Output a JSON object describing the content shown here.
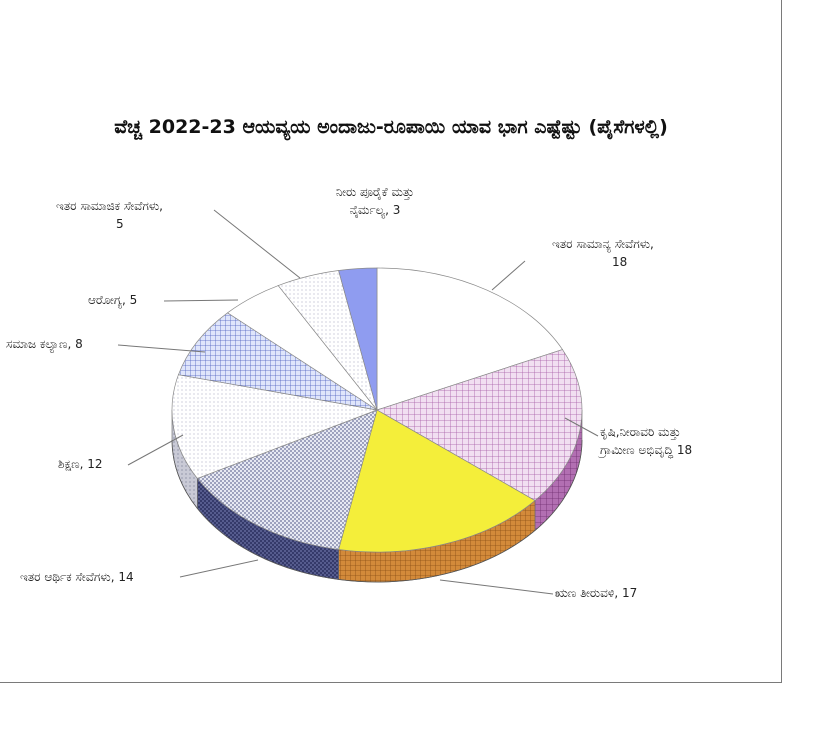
{
  "chart_data": {
    "type": "pie",
    "title": "ವೆಚ್ಚ 2022-23 ಆಯವ್ಯಯ ಅಂದಾಜು-ರೂಪಾಯಿ ಯಾವ ಭಾಗ ಎಷ್ಟೆಷ್ಟು (ಪೈಸೆಗಳಲ್ಲಿ)",
    "slices": [
      {
        "label_lines": [
          "ಇತರ ಸಾಮಾನ್ಯ ಸೇವೆಗಳು,",
          "18"
        ],
        "value": 18,
        "color": "#ffffff"
      },
      {
        "label_lines": [
          "ಕೃಷಿ,ನೀರಾವರಿ ಮತ್ತು",
          "ಗ್ರಾಮೀಣ ಅಭಿವೃದ್ಧಿ 18"
        ],
        "value": 18,
        "color": "#e6c3e6"
      },
      {
        "label_lines": [
          "ಋಣ ತೀರುವಳಿ, 17"
        ],
        "value": 17,
        "color": "#f4ee3a"
      },
      {
        "label_lines": [
          "ಇತರ ಆರ್ಥಿಕ ಸೇವೆಗಳು, 14"
        ],
        "value": 14,
        "color": "#c9cde3"
      },
      {
        "label_lines": [
          "ಶಿಕ್ಷಣ, 12"
        ],
        "value": 12,
        "color": "#ffffff"
      },
      {
        "label_lines": [
          "ಸಮಾಜ ಕಲ್ಯಾಣ, 8"
        ],
        "value": 8,
        "color": "#b9c4ea"
      },
      {
        "label_lines": [
          "ಆರೋಗ್ಯ, 5"
        ],
        "value": 5,
        "color": "#ffffff"
      },
      {
        "label_lines": [
          "ಇತರ ಸಾಮಾಜಿಕ ಸೇವೆಗಳು,",
          "5"
        ],
        "value": 5,
        "color": "#e2e6f4"
      },
      {
        "label_lines": [
          "ನೀರು ಪೂರೈಕೆ ಮತ್ತು",
          "ನೈರ್ಮಲ್ಯ, 3"
        ],
        "value": 3,
        "color": "#8f9cf0"
      }
    ]
  }
}
